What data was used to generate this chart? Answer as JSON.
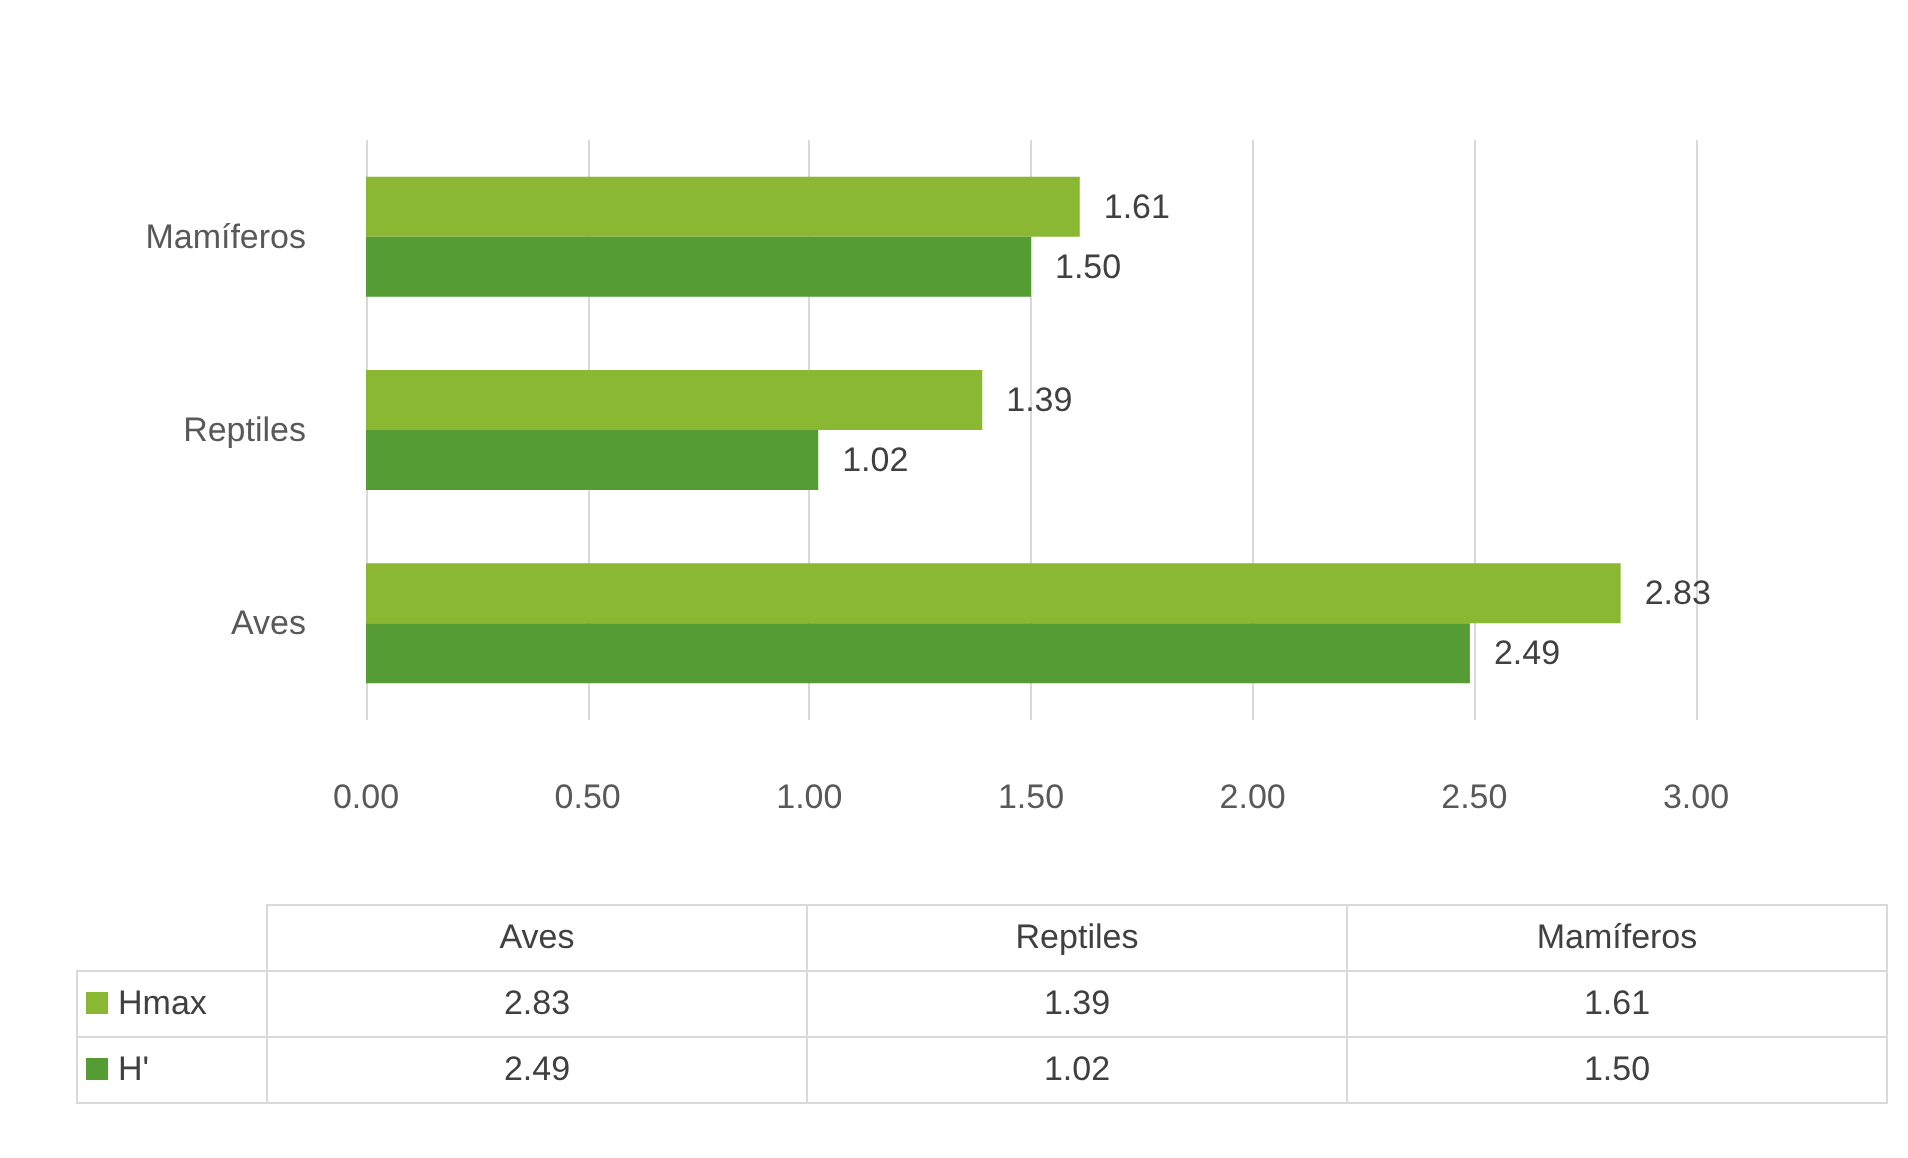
{
  "chart_data": {
    "type": "bar",
    "orientation": "horizontal",
    "categories": [
      "Mamíferos",
      "Reptiles",
      "Aves"
    ],
    "series": [
      {
        "name": "Hmax",
        "color": "#8ab833",
        "values": [
          1.61,
          1.39,
          2.83
        ],
        "value_labels": [
          "1.61",
          "1.39",
          "2.83"
        ]
      },
      {
        "name": "H'",
        "color": "#559c35",
        "values": [
          1.5,
          1.02,
          2.49
        ],
        "value_labels": [
          "1.50",
          "1.02",
          "2.49"
        ]
      }
    ],
    "xlim": [
      0,
      3
    ],
    "xticks": [
      {
        "value": 0,
        "label": "0.00"
      },
      {
        "value": 0.5,
        "label": "0.50"
      },
      {
        "value": 1,
        "label": "1.00"
      },
      {
        "value": 1.5,
        "label": "1.50"
      },
      {
        "value": 2,
        "label": "2.00"
      },
      {
        "value": 2.5,
        "label": "2.50"
      },
      {
        "value": 3,
        "label": "3.00"
      }
    ],
    "grid": "x",
    "legend": "bottom"
  }
}
